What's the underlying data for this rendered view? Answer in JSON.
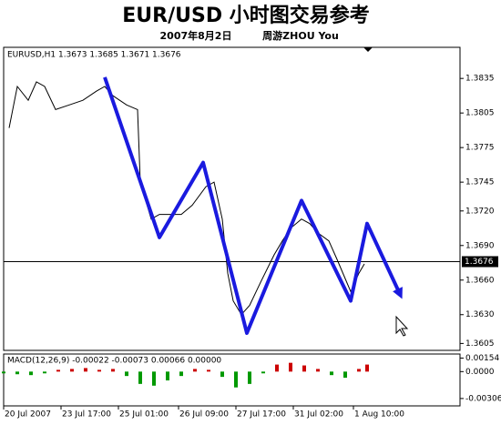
{
  "title": "EUR/USD 小时图交易参考",
  "date": "2007年8月2日",
  "author": "周游ZHOU You",
  "chart_data": [
    {
      "type": "line",
      "legend": "EURUSD,H1 1.3673 1.3685 1.3671 1.3676",
      "color": "#000000",
      "x": [
        2,
        5,
        9,
        12,
        15,
        19,
        24,
        29,
        34,
        37,
        40,
        45,
        49,
        50,
        54,
        57,
        60,
        65,
        69,
        74,
        77,
        80,
        82,
        84,
        87,
        90,
        94,
        99,
        102,
        105,
        109,
        112,
        115,
        119,
        122,
        127,
        130,
        132
      ],
      "values": [
        1.3792,
        1.3828,
        1.3816,
        1.3832,
        1.3828,
        1.3808,
        1.3812,
        1.3816,
        1.3824,
        1.3828,
        1.382,
        1.3812,
        1.3808,
        1.3745,
        1.3713,
        1.3717,
        1.3717,
        1.3717,
        1.3725,
        1.3741,
        1.3745,
        1.3713,
        1.3666,
        1.3642,
        1.363,
        1.3638,
        1.3658,
        1.3682,
        1.3694,
        1.3705,
        1.3713,
        1.3709,
        1.3701,
        1.3694,
        1.3678,
        1.365,
        1.3666,
        1.3674
      ],
      "annotation": {
        "x": [
          37,
          57,
          73,
          89,
          109,
          127,
          133,
          145
        ],
        "values": [
          1.3836,
          1.3697,
          1.3762,
          1.3614,
          1.3729,
          1.3642,
          1.3709,
          1.3648
        ],
        "color": "#1a1adf"
      },
      "current_price": 1.3676,
      "xlim": [
        0,
        167
      ],
      "xticks": [
        {
          "value": 0,
          "label": "20 Jul 2007"
        },
        {
          "value": 21,
          "label": "23 Jul 17:00"
        },
        {
          "value": 42,
          "label": "25 Jul 01:00"
        },
        {
          "value": 64,
          "label": "26 Jul 09:00"
        },
        {
          "value": 85,
          "label": "27 Jul 17:00"
        },
        {
          "value": 106,
          "label": "31 Jul 02:00"
        },
        {
          "value": 128,
          "label": "1 Aug 10:00"
        }
      ],
      "ylim": [
        1.3599,
        1.3862
      ],
      "yticks": [
        1.3835,
        1.3805,
        1.3775,
        1.3745,
        {
          "value": 1.372,
          "label": "1.3720"
        },
        {
          "value": 1.369,
          "label": "1.3690"
        },
        {
          "value": 1.366,
          "label": "1.3660"
        },
        {
          "value": 1.363,
          "label": "1.3630"
        },
        1.3605
      ]
    },
    {
      "type": "bar",
      "title": "MACD(12,26,9) -0.00022 -0.00073 0.00066 0.00000",
      "up_color": "#cc0000",
      "down_color": "#009900",
      "x": [
        0,
        5,
        10,
        15,
        20,
        25,
        30,
        35,
        40,
        45,
        50,
        55,
        60,
        65,
        70,
        75,
        80,
        85,
        90,
        95,
        100,
        105,
        110,
        115,
        120,
        125,
        130,
        133
      ],
      "values": [
        -0.0002,
        -0.0003,
        -0.0004,
        -0.0002,
        0.0002,
        0.0003,
        0.0004,
        0.0002,
        0.0003,
        -0.0005,
        -0.0014,
        -0.0016,
        -0.001,
        -0.0005,
        0.0003,
        0.0002,
        -0.0006,
        -0.0018,
        -0.0014,
        -0.0002,
        0.0008,
        0.001,
        0.0007,
        0.0003,
        -0.0004,
        -0.0007,
        0.0003,
        0.0008
      ],
      "xlim": [
        0,
        167
      ],
      "ylim": [
        -0.0039,
        0.002
      ],
      "yticks": [
        0.00154,
        {
          "value": 0,
          "label": "0.0000"
        },
        -0.00306
      ]
    }
  ]
}
